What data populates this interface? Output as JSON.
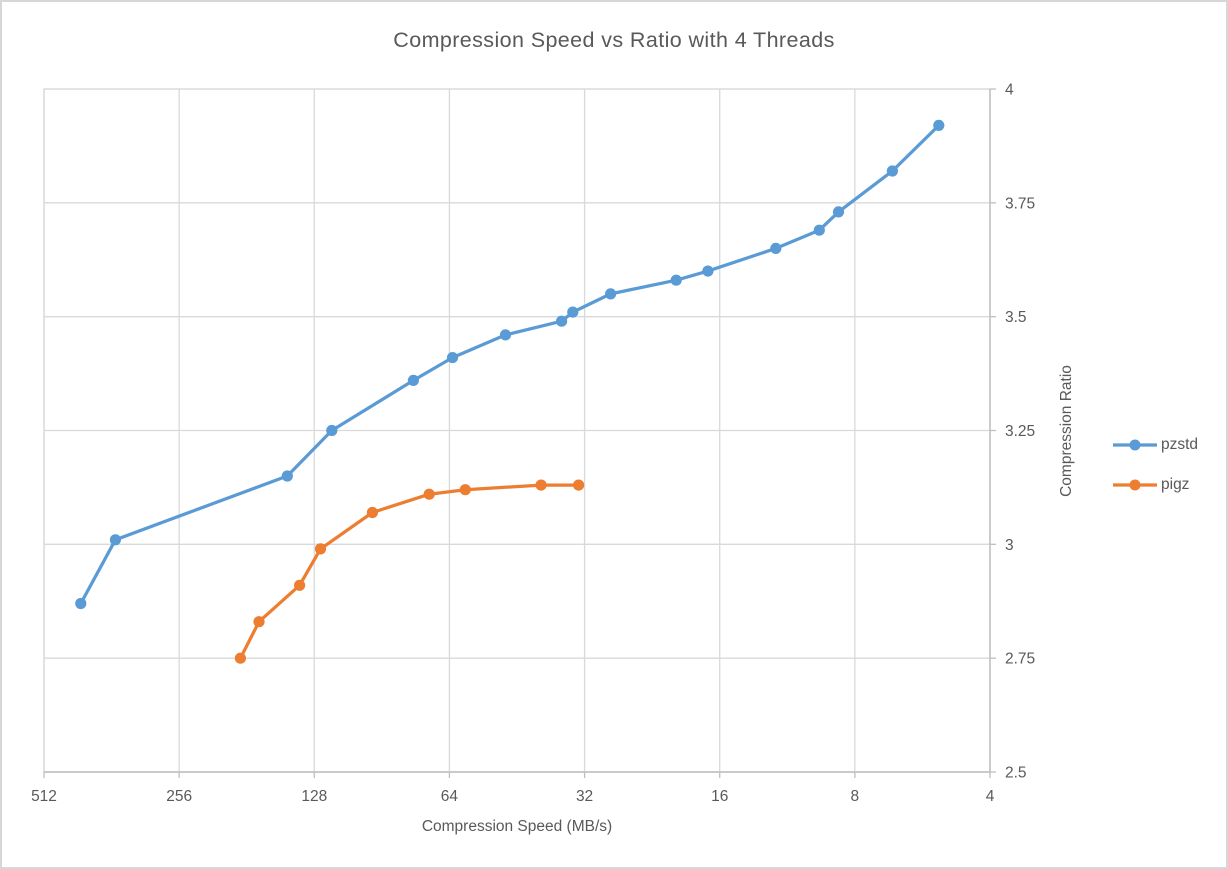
{
  "chart_data": {
    "type": "line",
    "title": "Compression Speed vs Ratio with 4 Threads",
    "xlabel": "Compression Speed (MB/s)",
    "ylabel": "Compression Ratio",
    "x_scale": "log2-reversed",
    "xlim": [
      512,
      4
    ],
    "ylim": [
      2.5,
      4
    ],
    "grid": true,
    "legend_position": "right",
    "x_ticks": [
      512,
      256,
      128,
      64,
      32,
      16,
      8,
      4
    ],
    "x_tick_labels": [
      "512",
      "256",
      "128",
      "64",
      "32",
      "16",
      "8",
      "4"
    ],
    "y_ticks": [
      4,
      3.75,
      3.5,
      3.25,
      3,
      2.75,
      2.5
    ],
    "y_tick_labels": [
      "4",
      "3.75",
      "3.5",
      "3.25",
      "3",
      "2.75",
      "2.5"
    ],
    "colors": {
      "gridline": "#d9d9d9",
      "axis_line": "#bfbfbf",
      "text": "#595959"
    },
    "series": [
      {
        "name": "pzstd",
        "color": "#5b9bd5",
        "points": [
          [
            424,
            2.87
          ],
          [
            355,
            3.01
          ],
          [
            147,
            3.15
          ],
          [
            117,
            3.25
          ],
          [
            77,
            3.36
          ],
          [
            63,
            3.41
          ],
          [
            48,
            3.46
          ],
          [
            36,
            3.49
          ],
          [
            34,
            3.51
          ],
          [
            28,
            3.55
          ],
          [
            20,
            3.58
          ],
          [
            17,
            3.6
          ],
          [
            12,
            3.65
          ],
          [
            9.6,
            3.69
          ],
          [
            8.7,
            3.73
          ],
          [
            6.6,
            3.82
          ],
          [
            5.2,
            3.92
          ]
        ]
      },
      {
        "name": "pigz",
        "color": "#ed7d31",
        "points": [
          [
            187,
            2.75
          ],
          [
            170,
            2.83
          ],
          [
            138,
            2.91
          ],
          [
            124,
            2.99
          ],
          [
            95,
            3.07
          ],
          [
            71,
            3.11
          ],
          [
            59,
            3.12
          ],
          [
            40,
            3.13
          ],
          [
            33,
            3.13
          ]
        ]
      }
    ]
  }
}
